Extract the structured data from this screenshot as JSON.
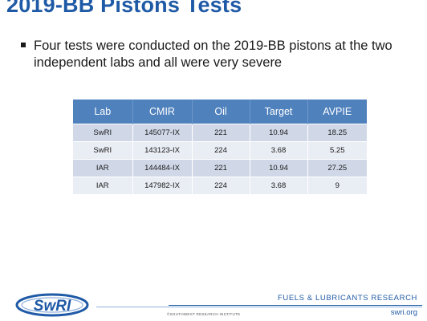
{
  "slide": {
    "title": "2019-BB Pistons Tests",
    "bullet": "Four tests were conducted on the 2019-BB pistons at the two independent labs and all were very severe"
  },
  "table": {
    "headers": [
      "Lab",
      "CMIR",
      "Oil",
      "Target",
      "AVPIE"
    ],
    "rows": [
      [
        "SwRI",
        "145077-IX",
        "221",
        "10.94",
        "18.25"
      ],
      [
        "SwRI",
        "143123-IX",
        "224",
        "3.68",
        "5.25"
      ],
      [
        "IAR",
        "144484-IX",
        "221",
        "10.94",
        "27.25"
      ],
      [
        "IAR",
        "147982-IX",
        "224",
        "3.68",
        "9"
      ]
    ]
  },
  "footer": {
    "logo_text": "SwRI",
    "division": "FUELS & LUBRICANTS RESEARCH",
    "url": "swri.org",
    "copyright": "©SOUTHWEST RESEARCH INSTITUTE"
  },
  "colors": {
    "title": "#1f5aa6",
    "table_header": "#4f81bd",
    "row_even": "#d0d8e8",
    "row_odd": "#e9edf4"
  }
}
